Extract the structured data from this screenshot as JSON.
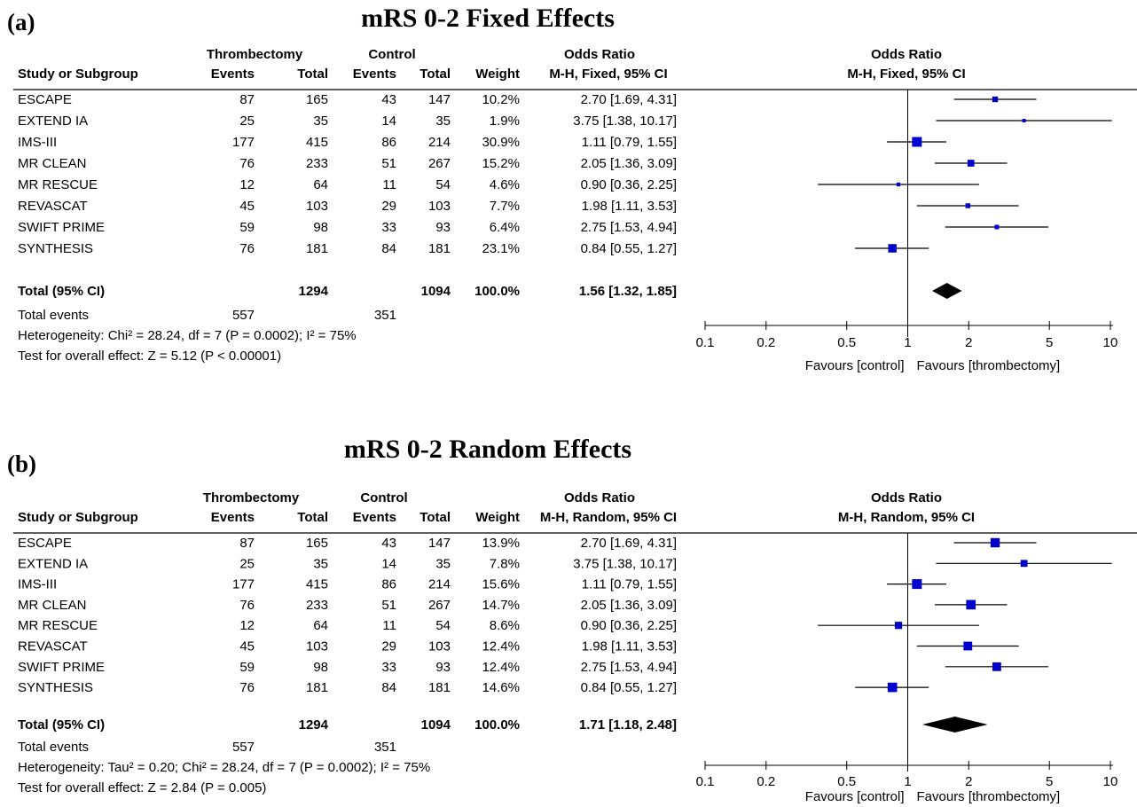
{
  "colors": {
    "marker": "#0000cc",
    "line": "#000000"
  },
  "columns": {
    "study": "Study or Subgroup",
    "group1": "Thrombectomy",
    "group2": "Control",
    "events": "Events",
    "total": "Total",
    "weight": "Weight",
    "or_header": "Odds Ratio"
  },
  "axis": {
    "ticks": [
      "0.1",
      "0.2",
      "0.5",
      "1",
      "2",
      "5",
      "10"
    ],
    "favours_left": "Favours [control]",
    "favours_right": "Favours [thrombectomy]"
  },
  "chart_data": [
    {
      "type": "forest",
      "panel_label": "(a)",
      "title": "mRS 0-2 Fixed Effects",
      "method": "M-H, Fixed, 95% CI",
      "x_scale": "log",
      "xlim": [
        0.1,
        10
      ],
      "studies": [
        {
          "name": "ESCAPE",
          "e1": "87",
          "t1": "165",
          "e2": "43",
          "t2": "147",
          "weight": "10.2%",
          "ci_text": "2.70 [1.69, 4.31]",
          "or": 2.7,
          "lo": 1.69,
          "hi": 4.31
        },
        {
          "name": "EXTEND IA",
          "e1": "25",
          "t1": "35",
          "e2": "14",
          "t2": "35",
          "weight": "1.9%",
          "ci_text": "3.75 [1.38, 10.17]",
          "or": 3.75,
          "lo": 1.38,
          "hi": 10.17
        },
        {
          "name": "IMS-III",
          "e1": "177",
          "t1": "415",
          "e2": "86",
          "t2": "214",
          "weight": "30.9%",
          "ci_text": "1.11 [0.79, 1.55]",
          "or": 1.11,
          "lo": 0.79,
          "hi": 1.55
        },
        {
          "name": "MR CLEAN",
          "e1": "76",
          "t1": "233",
          "e2": "51",
          "t2": "267",
          "weight": "15.2%",
          "ci_text": "2.05 [1.36, 3.09]",
          "or": 2.05,
          "lo": 1.36,
          "hi": 3.09
        },
        {
          "name": "MR RESCUE",
          "e1": "12",
          "t1": "64",
          "e2": "11",
          "t2": "54",
          "weight": "4.6%",
          "ci_text": "0.90 [0.36, 2.25]",
          "or": 0.9,
          "lo": 0.36,
          "hi": 2.25
        },
        {
          "name": "REVASCAT",
          "e1": "45",
          "t1": "103",
          "e2": "29",
          "t2": "103",
          "weight": "7.7%",
          "ci_text": "1.98 [1.11, 3.53]",
          "or": 1.98,
          "lo": 1.11,
          "hi": 3.53
        },
        {
          "name": "SWIFT PRIME",
          "e1": "59",
          "t1": "98",
          "e2": "33",
          "t2": "93",
          "weight": "6.4%",
          "ci_text": "2.75 [1.53, 4.94]",
          "or": 2.75,
          "lo": 1.53,
          "hi": 4.94
        },
        {
          "name": "SYNTHESIS",
          "e1": "76",
          "t1": "181",
          "e2": "84",
          "t2": "181",
          "weight": "23.1%",
          "ci_text": "0.84 [0.55, 1.27]",
          "or": 0.84,
          "lo": 0.55,
          "hi": 1.27
        }
      ],
      "total": {
        "label": "Total (95% CI)",
        "t1": "1294",
        "t2": "1094",
        "weight": "100.0%",
        "ci_text": "1.56 [1.32, 1.85]",
        "or": 1.56,
        "lo": 1.32,
        "hi": 1.85
      },
      "total_events": {
        "label": "Total events",
        "e1": "557",
        "e2": "351"
      },
      "heterogeneity": "Heterogeneity: Chi² = 28.24, df = 7 (P = 0.0002); I² = 75%",
      "overall_effect": "Test for overall effect: Z = 5.12 (P < 0.00001)"
    },
    {
      "type": "forest",
      "panel_label": "(b)",
      "title": "mRS 0-2 Random Effects",
      "method": "M-H, Random, 95% CI",
      "x_scale": "log",
      "xlim": [
        0.1,
        10
      ],
      "studies": [
        {
          "name": "ESCAPE",
          "e1": "87",
          "t1": "165",
          "e2": "43",
          "t2": "147",
          "weight": "13.9%",
          "ci_text": "2.70 [1.69, 4.31]",
          "or": 2.7,
          "lo": 1.69,
          "hi": 4.31
        },
        {
          "name": "EXTEND IA",
          "e1": "25",
          "t1": "35",
          "e2": "14",
          "t2": "35",
          "weight": "7.8%",
          "ci_text": "3.75 [1.38, 10.17]",
          "or": 3.75,
          "lo": 1.38,
          "hi": 10.17
        },
        {
          "name": "IMS-III",
          "e1": "177",
          "t1": "415",
          "e2": "86",
          "t2": "214",
          "weight": "15.6%",
          "ci_text": "1.11 [0.79, 1.55]",
          "or": 1.11,
          "lo": 0.79,
          "hi": 1.55
        },
        {
          "name": "MR CLEAN",
          "e1": "76",
          "t1": "233",
          "e2": "51",
          "t2": "267",
          "weight": "14.7%",
          "ci_text": "2.05 [1.36, 3.09]",
          "or": 2.05,
          "lo": 1.36,
          "hi": 3.09
        },
        {
          "name": "MR RESCUE",
          "e1": "12",
          "t1": "64",
          "e2": "11",
          "t2": "54",
          "weight": "8.6%",
          "ci_text": "0.90 [0.36, 2.25]",
          "or": 0.9,
          "lo": 0.36,
          "hi": 2.25
        },
        {
          "name": "REVASCAT",
          "e1": "45",
          "t1": "103",
          "e2": "29",
          "t2": "103",
          "weight": "12.4%",
          "ci_text": "1.98 [1.11, 3.53]",
          "or": 1.98,
          "lo": 1.11,
          "hi": 3.53
        },
        {
          "name": "SWIFT PRIME",
          "e1": "59",
          "t1": "98",
          "e2": "33",
          "t2": "93",
          "weight": "12.4%",
          "ci_text": "2.75 [1.53, 4.94]",
          "or": 2.75,
          "lo": 1.53,
          "hi": 4.94
        },
        {
          "name": "SYNTHESIS",
          "e1": "76",
          "t1": "181",
          "e2": "84",
          "t2": "181",
          "weight": "14.6%",
          "ci_text": "0.84 [0.55, 1.27]",
          "or": 0.84,
          "lo": 0.55,
          "hi": 1.27
        }
      ],
      "total": {
        "label": "Total (95% CI)",
        "t1": "1294",
        "t2": "1094",
        "weight": "100.0%",
        "ci_text": "1.71 [1.18, 2.48]",
        "or": 1.71,
        "lo": 1.18,
        "hi": 2.48
      },
      "total_events": {
        "label": "Total events",
        "e1": "557",
        "e2": "351"
      },
      "heterogeneity": "Heterogeneity: Tau² = 0.20; Chi² = 28.24, df = 7 (P = 0.0002); I² = 75%",
      "overall_effect": "Test for overall effect: Z = 2.84 (P = 0.005)"
    }
  ]
}
